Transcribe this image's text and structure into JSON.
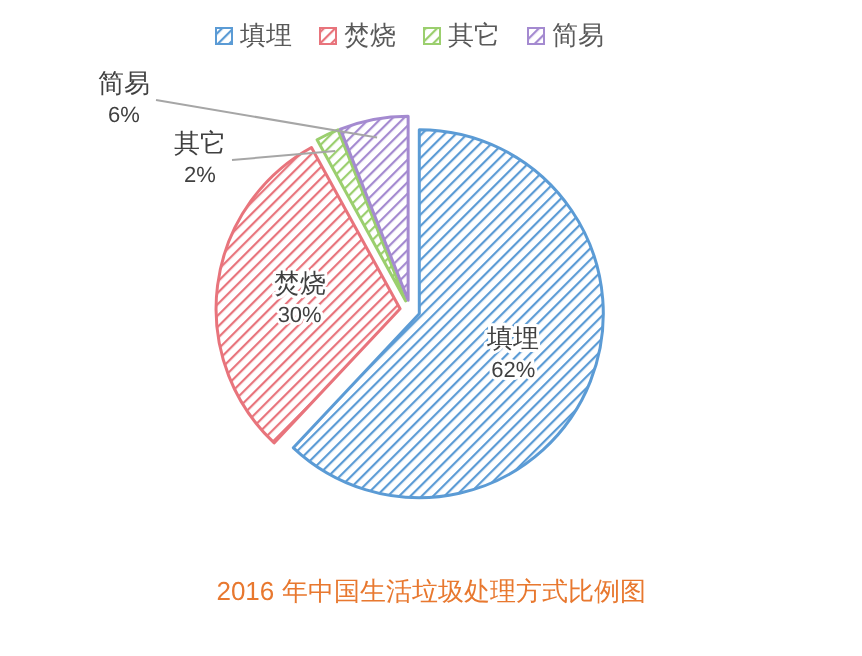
{
  "chart_data": {
    "type": "pie",
    "title": "2016 年中国生活垃圾处理方式比例图",
    "categories": [
      "填埋",
      "焚烧",
      "其它",
      "简易"
    ],
    "values": [
      62,
      30,
      2,
      6
    ],
    "colors": [
      "#5b9bd5",
      "#e8747c",
      "#9bcf6e",
      "#a48ad0"
    ],
    "value_labels": [
      "62%",
      "30%",
      "2%",
      "6%"
    ],
    "legend": "top"
  }
}
